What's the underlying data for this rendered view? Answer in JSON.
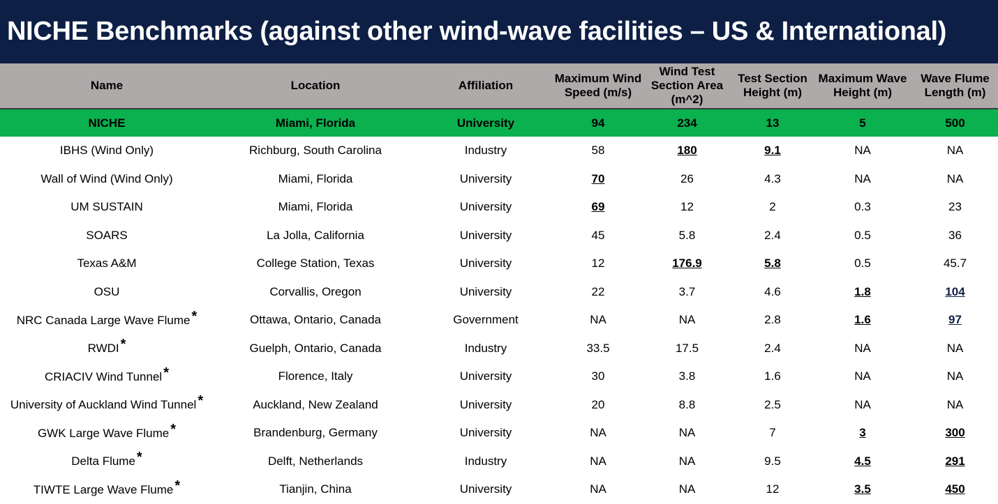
{
  "title": "NICHE Benchmarks (against other wind-wave facilities – US & International)",
  "columns": [
    "Name",
    "Location",
    "Affiliation",
    "Maximum Wind Speed (m/s)",
    "Wind Test Section Area (m^2)",
    "Test Section Height (m)",
    "Maximum Wave Height (m)",
    "Wave Flume Length (m)"
  ],
  "niche": {
    "name": "NICHE",
    "location": "Miami, Florida",
    "affiliation": "University",
    "wind_speed": "94",
    "area": "234",
    "height": "13",
    "wave_height": "5",
    "flume_length": "500"
  },
  "rows": [
    {
      "name": "IBHS (Wind Only)",
      "location": "Richburg, South Carolina",
      "affiliation": "Industry",
      "wind_speed": "58",
      "area": "180",
      "height": "9.1",
      "wave_height": "NA",
      "flume_length": "NA"
    },
    {
      "name": "Wall of Wind (Wind Only)",
      "location": "Miami, Florida",
      "affiliation": "University",
      "wind_speed": "70",
      "area": "26",
      "height": "4.3",
      "wave_height": "NA",
      "flume_length": "NA"
    },
    {
      "name": "UM SUSTAIN",
      "location": "Miami, Florida",
      "affiliation": "University",
      "wind_speed": "69",
      "area": "12",
      "height": "2",
      "wave_height": "0.3",
      "flume_length": "23"
    },
    {
      "name": "SOARS",
      "location": "La Jolla, California",
      "affiliation": "University",
      "wind_speed": "45",
      "area": "5.8",
      "height": "2.4",
      "wave_height": "0.5",
      "flume_length": "36"
    },
    {
      "name": "Texas A&M",
      "location": "College Station, Texas",
      "affiliation": "University",
      "wind_speed": "12",
      "area": "176.9",
      "height": "5.8",
      "wave_height": "0.5",
      "flume_length": "45.7"
    },
    {
      "name": "OSU",
      "location": "Corvallis, Oregon",
      "affiliation": "University",
      "wind_speed": "22",
      "area": "3.7",
      "height": "4.6",
      "wave_height": "1.8",
      "flume_length": "104"
    },
    {
      "name": "NRC Canada Large Wave Flume",
      "location": "Ottawa, Ontario, Canada",
      "affiliation": "Government",
      "wind_speed": "NA",
      "area": "NA",
      "height": "2.8",
      "wave_height": "1.6",
      "flume_length": "97"
    },
    {
      "name": "RWDI",
      "location": "Guelph, Ontario, Canada",
      "affiliation": "Industry",
      "wind_speed": "33.5",
      "area": "17.5",
      "height": "2.4",
      "wave_height": "NA",
      "flume_length": "NA"
    },
    {
      "name": "CRIACIV Wind Tunnel",
      "location": "Florence, Italy",
      "affiliation": "University",
      "wind_speed": "30",
      "area": "3.8",
      "height": "1.6",
      "wave_height": "NA",
      "flume_length": "NA"
    },
    {
      "name": "University of Auckland Wind Tunnel",
      "location": "Auckland, New Zealand",
      "affiliation": "University",
      "wind_speed": "20",
      "area": "8.8",
      "height": "2.5",
      "wave_height": "NA",
      "flume_length": "NA"
    },
    {
      "name": "GWK Large Wave Flume",
      "location": "Brandenburg, Germany",
      "affiliation": "University",
      "wind_speed": "NA",
      "area": "NA",
      "height": "7",
      "wave_height": "3",
      "flume_length": "300"
    },
    {
      "name": "Delta Flume",
      "location": "Delft, Netherlands",
      "affiliation": "Industry",
      "wind_speed": "NA",
      "area": "NA",
      "height": "9.5",
      "wave_height": "4.5",
      "flume_length": "291"
    },
    {
      "name": "TIWTE Large Wave Flume",
      "location": "Tianjin, China",
      "affiliation": "University",
      "wind_speed": "NA",
      "area": "NA",
      "height": "12",
      "wave_height": "3.5",
      "flume_length": "450"
    }
  ],
  "footnote_marker": "*"
}
